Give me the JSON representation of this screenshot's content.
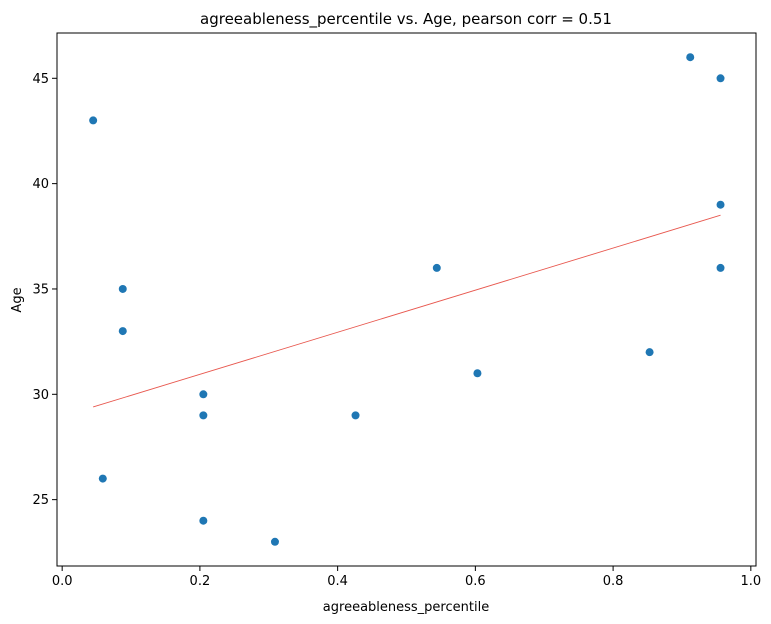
{
  "chart_data": {
    "type": "scatter",
    "title": "agreeableness_percentile vs. Age, pearson corr = 0.51",
    "xlabel": "agreeableness_percentile",
    "ylabel": "Age",
    "xlim": [
      -0.0075,
      1.0075
    ],
    "ylim": [
      21.85,
      47.15
    ],
    "xticks": [
      0.0,
      0.2,
      0.4,
      0.6,
      0.8,
      1.0
    ],
    "xtick_labels": [
      "0.0",
      "0.2",
      "0.4",
      "0.6",
      "0.8",
      "1.0"
    ],
    "yticks": [
      25,
      30,
      35,
      40,
      45
    ],
    "ytick_labels": [
      "25",
      "30",
      "35",
      "40",
      "45"
    ],
    "grid": false,
    "point_color": "#1f77b4",
    "line_color": "#e8584f",
    "points": [
      {
        "x": 0.045,
        "y": 43
      },
      {
        "x": 0.059,
        "y": 26
      },
      {
        "x": 0.088,
        "y": 35
      },
      {
        "x": 0.088,
        "y": 33
      },
      {
        "x": 0.205,
        "y": 30
      },
      {
        "x": 0.205,
        "y": 29
      },
      {
        "x": 0.205,
        "y": 24
      },
      {
        "x": 0.309,
        "y": 23
      },
      {
        "x": 0.426,
        "y": 29
      },
      {
        "x": 0.544,
        "y": 36
      },
      {
        "x": 0.603,
        "y": 31
      },
      {
        "x": 0.853,
        "y": 32
      },
      {
        "x": 0.912,
        "y": 46
      },
      {
        "x": 0.956,
        "y": 45
      },
      {
        "x": 0.956,
        "y": 39
      },
      {
        "x": 0.956,
        "y": 36
      }
    ],
    "trendline": [
      {
        "x": 0.045,
        "y": 29.4
      },
      {
        "x": 0.956,
        "y": 38.5
      }
    ]
  }
}
